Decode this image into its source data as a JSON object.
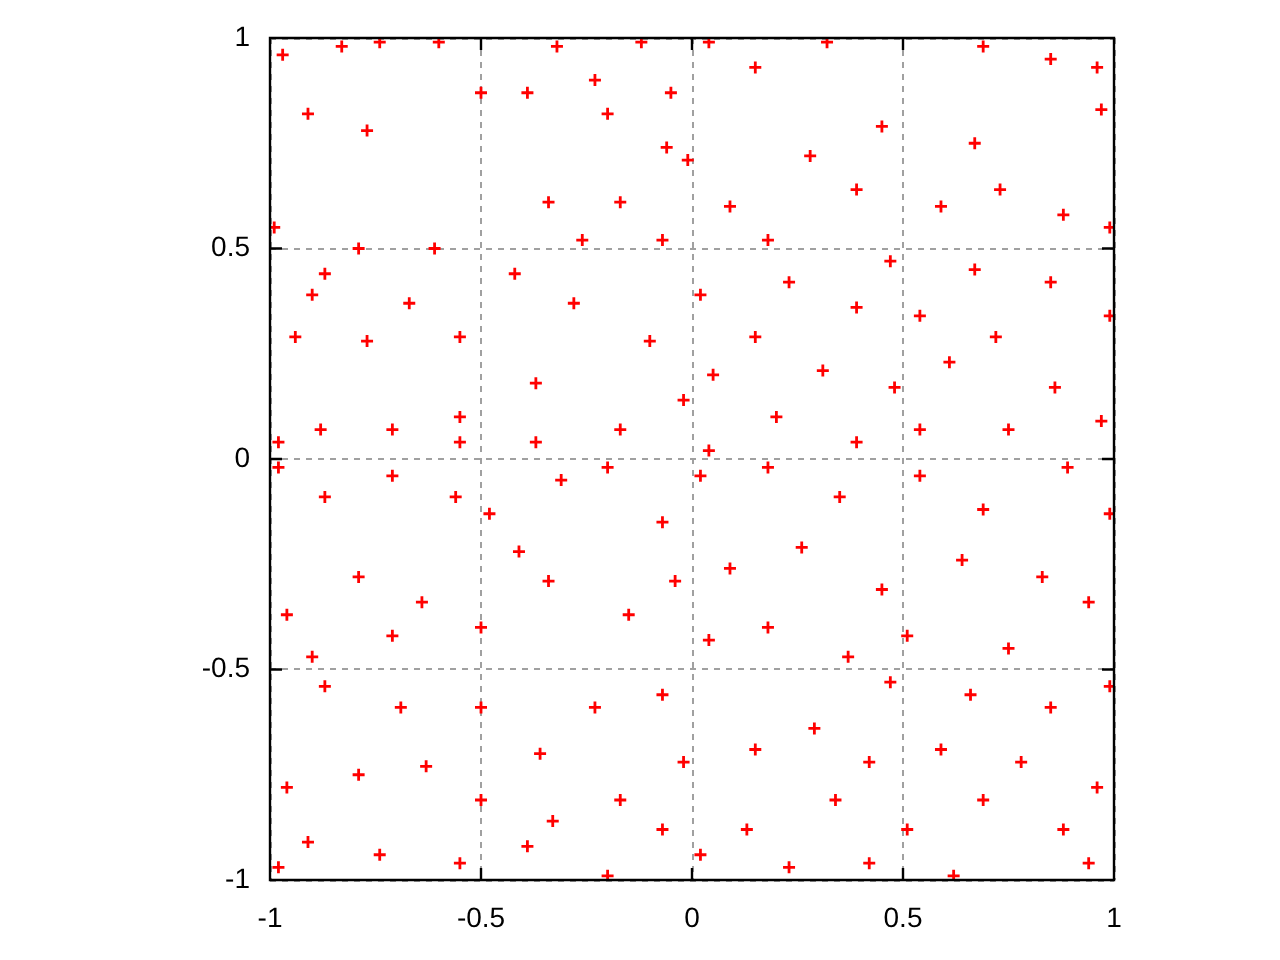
{
  "chart_data": {
    "type": "scatter",
    "x": [
      -0.97,
      -0.91,
      -0.5,
      -0.9,
      -0.37,
      -0.2,
      -0.06,
      -0.67,
      -0.55,
      -0.77,
      -0.83,
      -0.74,
      -0.6,
      -0.32,
      -0.12,
      -0.23,
      -0.39,
      -0.05,
      -0.01,
      -0.34,
      -0.17,
      -0.07,
      -0.26,
      -0.42,
      -0.61,
      -0.79,
      -0.87,
      -0.99,
      -0.94,
      -0.77,
      -0.55,
      -0.28,
      -0.1,
      -0.02,
      -0.17,
      -0.37,
      -0.55,
      -0.71,
      -0.88,
      -0.98,
      0.04,
      0.15,
      0.32,
      0.45,
      0.67,
      0.97,
      0.85,
      0.69,
      0.96,
      0.28,
      0.09,
      0.39,
      0.59,
      0.73,
      0.99,
      0.88,
      0.18,
      0.47,
      0.67,
      0.85,
      0.99,
      0.02,
      0.23,
      0.39,
      0.54,
      0.72,
      0.15,
      0.05,
      0.31,
      0.48,
      0.61,
      0.86,
      0.97,
      0.75,
      0.54,
      0.39,
      0.2,
      0.04,
      -0.98,
      -0.87,
      -0.71,
      -0.56,
      -0.48,
      -0.41,
      -0.31,
      -0.2,
      -0.07,
      -0.04,
      -0.15,
      -0.34,
      -0.5,
      -0.64,
      -0.79,
      -0.96,
      -0.9,
      -0.71,
      -0.87,
      -0.69,
      -0.5,
      -0.36,
      -0.23,
      -0.07,
      -0.02,
      -0.17,
      -0.33,
      -0.5,
      -0.63,
      -0.79,
      -0.96,
      -0.91,
      -0.74,
      -0.55,
      -0.39,
      -0.2,
      -0.07,
      -0.98,
      0.02,
      0.18,
      0.35,
      0.54,
      0.69,
      0.89,
      0.99,
      0.83,
      0.64,
      0.45,
      0.26,
      0.09,
      0.04,
      0.18,
      0.37,
      0.51,
      0.75,
      0.94,
      0.99,
      0.85,
      0.66,
      0.47,
      0.15,
      0.29,
      0.42,
      0.59,
      0.78,
      0.96,
      0.88,
      0.69,
      0.51,
      0.34,
      0.13,
      0.02,
      0.23,
      0.62,
      0.94,
      0.42
    ],
    "series": [
      {
        "color": "#ff0000",
        "values": [
          0.96,
          0.82,
          0.87,
          0.39,
          0.18,
          0.82,
          0.74,
          0.37,
          0.1,
          0.78,
          0.98,
          0.99,
          0.99,
          0.98,
          0.99,
          0.9,
          0.87,
          0.87,
          0.71,
          0.61,
          0.61,
          0.52,
          0.52,
          0.44,
          0.5,
          0.5,
          0.44,
          0.55,
          0.29,
          0.28,
          0.29,
          0.37,
          0.28,
          0.14,
          0.07,
          0.04,
          0.04,
          0.07,
          0.07,
          0.04,
          0.99,
          0.93,
          0.99,
          0.79,
          0.75,
          0.83,
          0.95,
          0.98,
          0.93,
          0.72,
          0.6,
          0.64,
          0.6,
          0.64,
          0.55,
          0.58,
          0.52,
          0.47,
          0.45,
          0.42,
          0.34,
          0.39,
          0.42,
          0.36,
          0.34,
          0.29,
          0.29,
          0.2,
          0.21,
          0.17,
          0.23,
          0.17,
          0.09,
          0.07,
          0.07,
          0.04,
          0.1,
          0.02,
          -0.02,
          -0.09,
          -0.04,
          -0.09,
          -0.13,
          -0.22,
          -0.05,
          -0.02,
          -0.15,
          -0.29,
          -0.37,
          -0.29,
          -0.4,
          -0.34,
          -0.28,
          -0.37,
          -0.47,
          -0.42,
          -0.54,
          -0.59,
          -0.59,
          -0.7,
          -0.59,
          -0.56,
          -0.72,
          -0.81,
          -0.86,
          -0.81,
          -0.73,
          -0.75,
          -0.78,
          -0.91,
          -0.94,
          -0.96,
          -0.92,
          -0.99,
          -0.88,
          -0.97,
          -0.04,
          -0.02,
          -0.09,
          -0.04,
          -0.12,
          -0.02,
          -0.13,
          -0.28,
          -0.24,
          -0.31,
          -0.21,
          -0.26,
          -0.43,
          -0.4,
          -0.47,
          -0.42,
          -0.45,
          -0.34,
          -0.54,
          -0.59,
          -0.56,
          -0.53,
          -0.69,
          -0.64,
          -0.72,
          -0.69,
          -0.72,
          -0.78,
          -0.88,
          -0.81,
          -0.88,
          -0.81,
          -0.88,
          -0.94,
          -0.97,
          -0.99,
          -0.96,
          -0.96
        ]
      }
    ],
    "xlim": [
      -1,
      1
    ],
    "ylim": [
      -1,
      1
    ],
    "xticks": [
      -1,
      -0.5,
      0,
      0.5,
      1
    ],
    "yticks": [
      -1,
      -0.5,
      0,
      0.5,
      1
    ],
    "grid": true,
    "marker": "cross"
  }
}
